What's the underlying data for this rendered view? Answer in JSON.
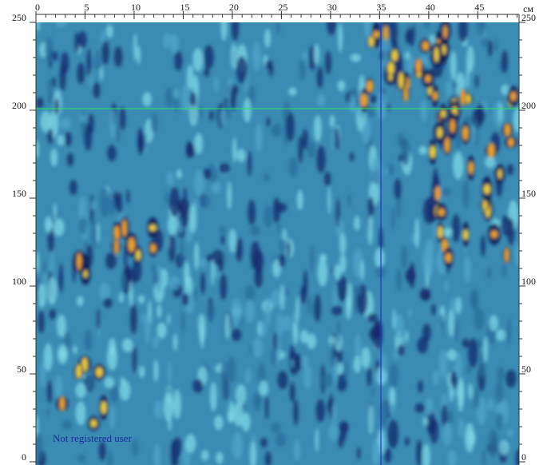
{
  "scan": {
    "unit": "см",
    "xlim": [
      0,
      49.2
    ],
    "xticks": [
      0,
      5,
      10,
      15,
      20,
      25,
      30,
      35,
      40,
      45
    ],
    "ylim": [
      0,
      250
    ],
    "yticks": [
      0,
      50,
      100,
      150,
      200,
      250
    ],
    "watermark": "Not registered user"
  }
}
